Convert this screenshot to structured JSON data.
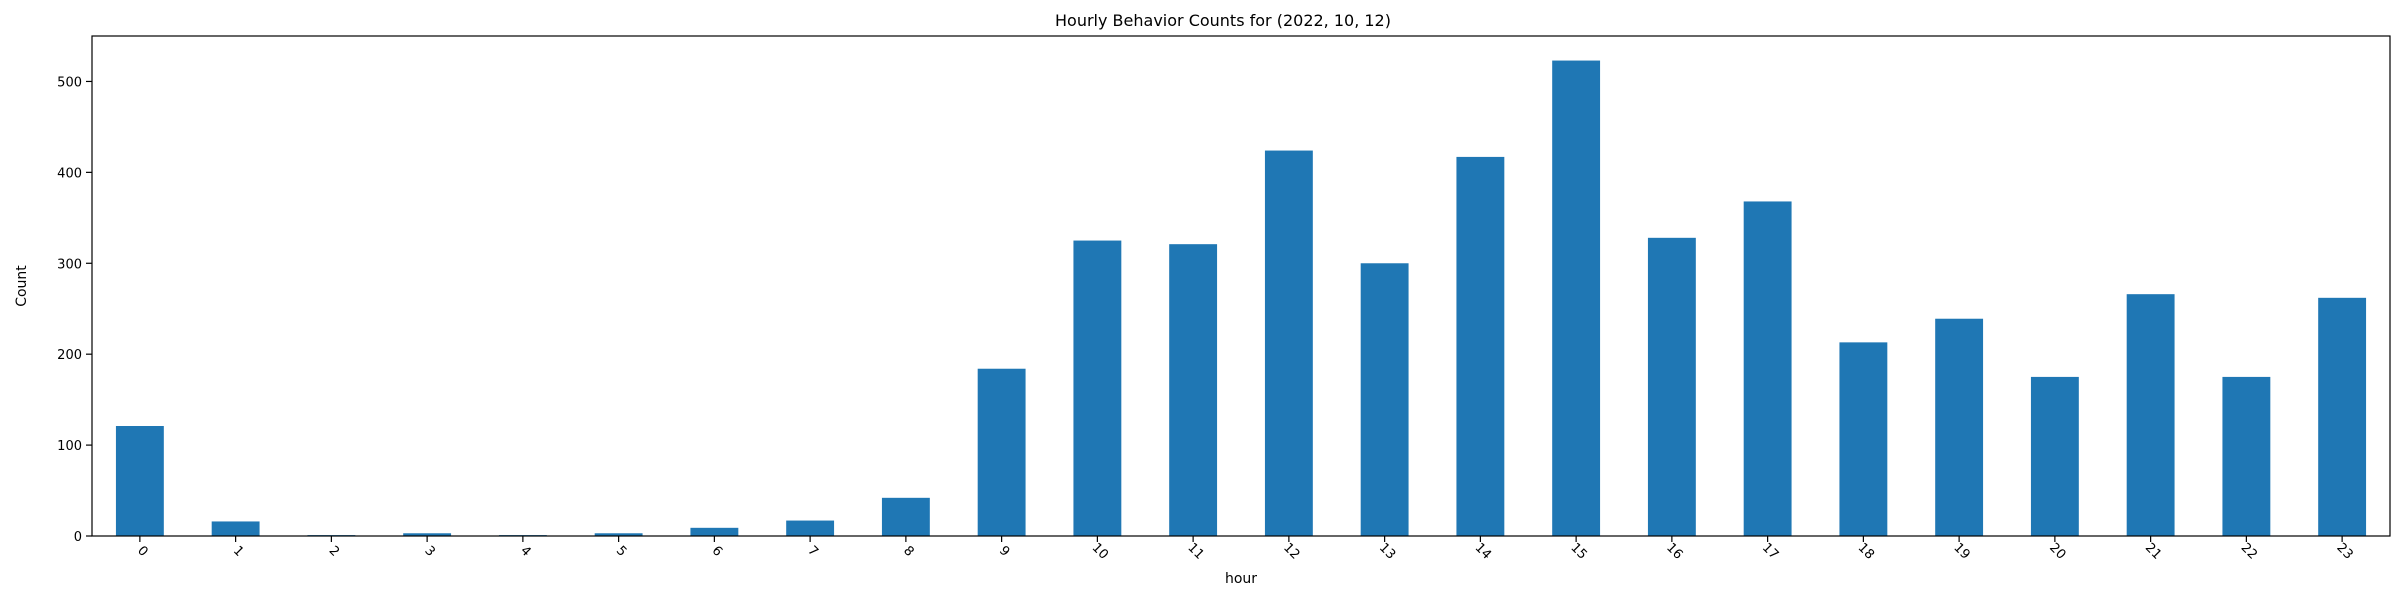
{
  "chart_data": {
    "type": "bar",
    "title": "Hourly Behavior Counts for (2022, 10, 12)",
    "xlabel": "hour",
    "ylabel": "Count",
    "categories": [
      "0",
      "1",
      "2",
      "3",
      "4",
      "5",
      "6",
      "7",
      "8",
      "9",
      "10",
      "11",
      "12",
      "13",
      "14",
      "15",
      "16",
      "17",
      "18",
      "19",
      "20",
      "21",
      "22",
      "23"
    ],
    "values": [
      121,
      16,
      1,
      3,
      1,
      3,
      9,
      17,
      42,
      184,
      325,
      321,
      424,
      300,
      417,
      523,
      328,
      368,
      213,
      239,
      175,
      266,
      175,
      262
    ],
    "ylim": [
      0,
      550
    ],
    "yticks": [
      0,
      100,
      200,
      300,
      400,
      500
    ],
    "xtick_rotation": 45,
    "grid": false,
    "legend": false,
    "bar_color": "#1f77b4"
  }
}
